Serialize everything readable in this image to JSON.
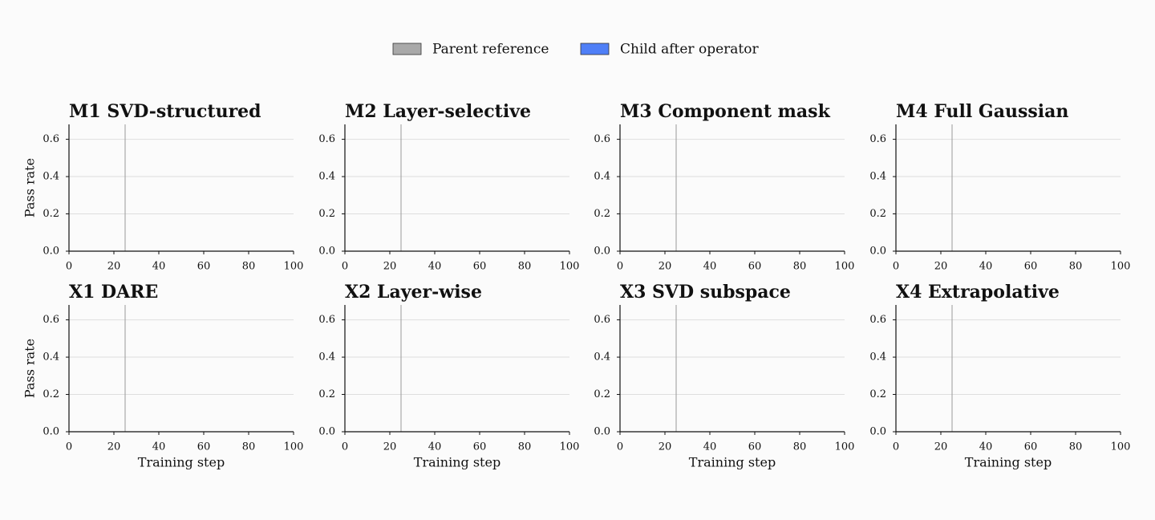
{
  "legend": {
    "entries": [
      {
        "name": "Parent reference",
        "color": "#a9a9a9"
      },
      {
        "name": "Child after operator",
        "color": "#4f7ff7"
      }
    ]
  },
  "chart_data": [
    {
      "type": "bar",
      "title": "M1 SVD-structured",
      "ylabel": "Pass rate",
      "xlim": [
        0,
        100
      ],
      "xticks": [
        0,
        20,
        40,
        60,
        80,
        100
      ],
      "ylim": [
        0,
        0.68
      ],
      "yticks": [
        {
          "value": 0,
          "label": "0.0"
        },
        0.2,
        0.4,
        0.6
      ],
      "grid": true,
      "vline": 25
    },
    {
      "type": "bar",
      "title": "M2 Layer-selective",
      "xlim": [
        0,
        100
      ],
      "xticks": [
        0,
        20,
        40,
        60,
        80,
        100
      ],
      "ylim": [
        0,
        0.68
      ],
      "yticks": [
        {
          "value": 0,
          "label": "0.0"
        },
        0.2,
        0.4,
        0.6
      ],
      "grid": true,
      "vline": 25
    },
    {
      "type": "bar",
      "title": "M3 Component mask",
      "xlim": [
        0,
        100
      ],
      "xticks": [
        0,
        20,
        40,
        60,
        80,
        100
      ],
      "ylim": [
        0,
        0.68
      ],
      "yticks": [
        {
          "value": 0,
          "label": "0.0"
        },
        0.2,
        0.4,
        0.6
      ],
      "grid": true,
      "vline": 25
    },
    {
      "type": "bar",
      "title": "M4 Full Gaussian",
      "xlim": [
        0,
        100
      ],
      "xticks": [
        0,
        20,
        40,
        60,
        80,
        100
      ],
      "ylim": [
        0,
        0.68
      ],
      "yticks": [
        {
          "value": 0,
          "label": "0.0"
        },
        0.2,
        0.4,
        0.6
      ],
      "grid": true,
      "vline": 25
    },
    {
      "type": "bar",
      "title": "X1 DARE",
      "ylabel": "Pass rate",
      "xlabel": "Training step",
      "xlim": [
        0,
        100
      ],
      "xticks": [
        0,
        20,
        40,
        60,
        80,
        100
      ],
      "ylim": [
        0,
        0.68
      ],
      "yticks": [
        {
          "value": 0,
          "label": "0.0"
        },
        0.2,
        0.4,
        0.6
      ],
      "grid": true,
      "vline": 25
    },
    {
      "type": "bar",
      "title": "X2 Layer-wise",
      "xlabel": "Training step",
      "xlim": [
        0,
        100
      ],
      "xticks": [
        0,
        20,
        40,
        60,
        80,
        100
      ],
      "ylim": [
        0,
        0.68
      ],
      "yticks": [
        {
          "value": 0,
          "label": "0.0"
        },
        0.2,
        0.4,
        0.6
      ],
      "grid": true,
      "vline": 25
    },
    {
      "type": "bar",
      "title": "X3 SVD subspace",
      "xlabel": "Training step",
      "xlim": [
        0,
        100
      ],
      "xticks": [
        0,
        20,
        40,
        60,
        80,
        100
      ],
      "ylim": [
        0,
        0.68
      ],
      "yticks": [
        {
          "value": 0,
          "label": "0.0"
        },
        0.2,
        0.4,
        0.6
      ],
      "grid": true,
      "vline": 25
    },
    {
      "type": "bar",
      "title": "X4 Extrapolative",
      "xlabel": "Training step",
      "xlim": [
        0,
        100
      ],
      "xticks": [
        0,
        20,
        40,
        60,
        80,
        100
      ],
      "ylim": [
        0,
        0.68
      ],
      "yticks": [
        {
          "value": 0,
          "label": "0.0"
        },
        0.2,
        0.4,
        0.6
      ],
      "grid": true,
      "vline": 25
    }
  ]
}
